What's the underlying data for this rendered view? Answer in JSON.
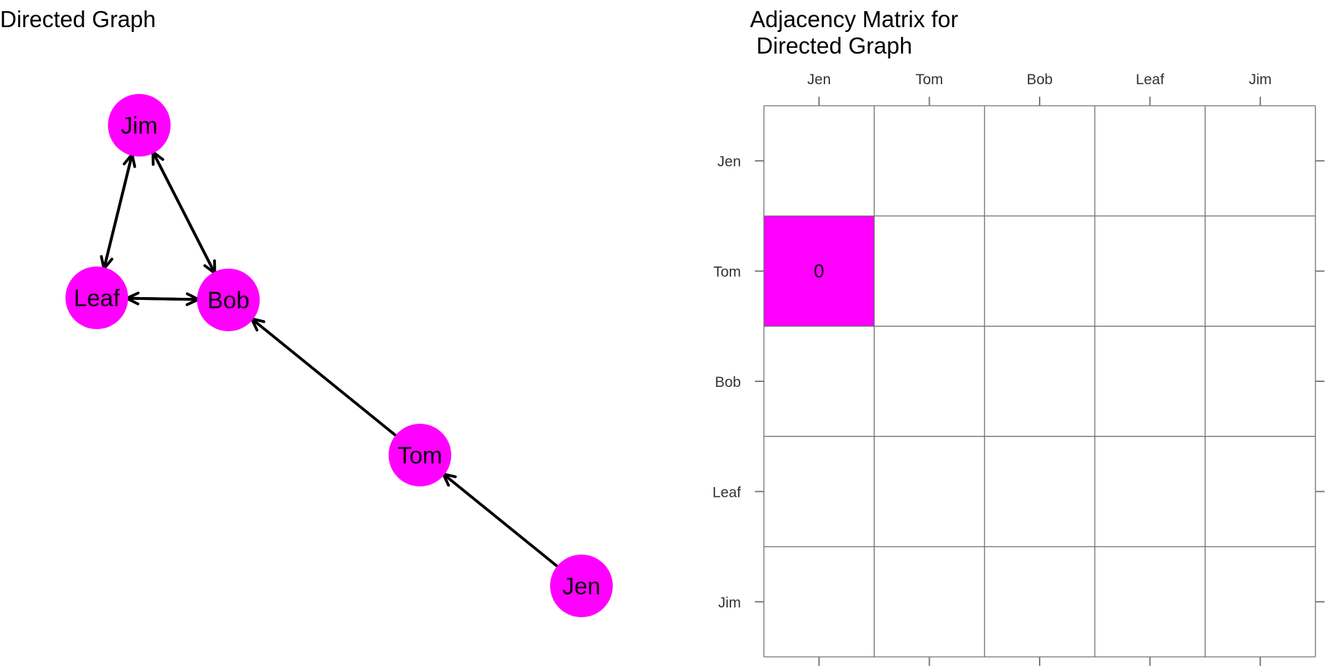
{
  "graph": {
    "title": "Directed Graph",
    "node_color": "#FF00FF",
    "edge_color": "#000000",
    "nodes": [
      {
        "id": "Jim",
        "label": "Jim"
      },
      {
        "id": "Leaf",
        "label": "Leaf"
      },
      {
        "id": "Bob",
        "label": "Bob"
      },
      {
        "id": "Tom",
        "label": "Tom"
      },
      {
        "id": "Jen",
        "label": "Jen"
      }
    ],
    "edges": [
      {
        "from": "Jim",
        "to": "Leaf"
      },
      {
        "from": "Leaf",
        "to": "Jim"
      },
      {
        "from": "Jim",
        "to": "Bob"
      },
      {
        "from": "Bob",
        "to": "Jim"
      },
      {
        "from": "Leaf",
        "to": "Bob"
      },
      {
        "from": "Bob",
        "to": "Leaf"
      },
      {
        "from": "Tom",
        "to": "Bob"
      },
      {
        "from": "Jen",
        "to": "Tom"
      }
    ]
  },
  "matrix": {
    "title_line1": "Adjacency Matrix for",
    "title_line2": " Directed Graph",
    "columns": [
      "Jen",
      "Tom",
      "Bob",
      "Leaf",
      "Jim"
    ],
    "rows": [
      "Jen",
      "Tom",
      "Bob",
      "Leaf",
      "Jim"
    ],
    "highlight_color": "#FF00FF",
    "highlighted_cells": [
      {
        "row": "Tom",
        "column": "Jen",
        "value": "0"
      }
    ]
  }
}
